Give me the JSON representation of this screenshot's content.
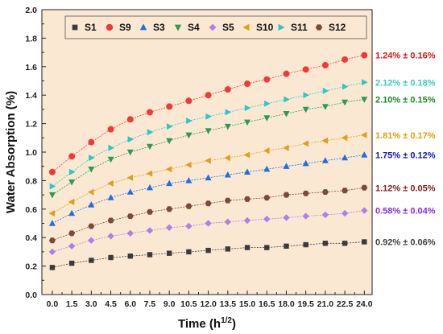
{
  "chart_data": {
    "type": "scatter",
    "xlabel": "Time (h",
    "xlabel_sup": "1/2",
    "xlabel_end": ")",
    "ylabel": "Water Absorption (%)",
    "xlim": [
      -0.8,
      24.6
    ],
    "ylim": [
      0,
      2.0
    ],
    "x_ticks": [
      0.0,
      1.5,
      3.0,
      4.5,
      6.0,
      7.5,
      9.0,
      10.5,
      12.0,
      13.5,
      15.0,
      16.5,
      18.0,
      19.5,
      21.0,
      22.5,
      24.0
    ],
    "x_tick_labels": [
      "0.0",
      "1.5",
      "3.0",
      "4.5",
      "6.0",
      "7.5",
      "9.0",
      "10.5",
      "12.0",
      "13.5",
      "15.0",
      "16.5",
      "18.0",
      "19.5",
      "21.0",
      "22.5",
      "24.0"
    ],
    "y_ticks": [
      0,
      0.2,
      0.4,
      0.6,
      0.8,
      1.0,
      1.2,
      1.4,
      1.6,
      1.8,
      2.0
    ],
    "y_tick_labels": [
      "0.0",
      "0.2",
      "0.4",
      "0.6",
      "0.8",
      "1.0",
      "1.2",
      "1.4",
      "1.6",
      "1.8",
      "2.0"
    ],
    "x": [
      0.0,
      1.5,
      3.0,
      4.5,
      6.0,
      7.5,
      9.0,
      10.5,
      12.0,
      13.5,
      15.0,
      16.5,
      18.0,
      19.5,
      21.0,
      22.5,
      24.0
    ],
    "legend_position": "top",
    "background": "#fbe8d3",
    "grid": false,
    "series": [
      {
        "name": "S1",
        "color": "#3b3b3b",
        "marker": "square",
        "values": [
          0.19,
          0.22,
          0.24,
          0.26,
          0.27,
          0.28,
          0.29,
          0.3,
          0.31,
          0.32,
          0.33,
          0.33,
          0.34,
          0.35,
          0.36,
          0.36,
          0.37
        ],
        "annotation": "0.92% ± 0.06%",
        "annotation_color": "#404040"
      },
      {
        "name": "S9",
        "color": "#f03a3a",
        "marker": "circle",
        "values": [
          0.86,
          0.97,
          1.07,
          1.16,
          1.23,
          1.28,
          1.32,
          1.36,
          1.4,
          1.44,
          1.48,
          1.51,
          1.55,
          1.58,
          1.61,
          1.65,
          1.68
        ],
        "annotation": "1.24% ± 0.16%",
        "annotation_color": "#e01515"
      },
      {
        "name": "S3",
        "color": "#1f6fe0",
        "marker": "triangle-up",
        "values": [
          0.5,
          0.57,
          0.63,
          0.68,
          0.72,
          0.75,
          0.78,
          0.8,
          0.82,
          0.84,
          0.86,
          0.88,
          0.9,
          0.92,
          0.94,
          0.96,
          0.98
        ],
        "annotation": "1.75% ± 0.12%",
        "annotation_color": "#1010d8"
      },
      {
        "name": "S4",
        "color": "#2e9a55",
        "marker": "triangle-down",
        "values": [
          0.7,
          0.79,
          0.88,
          0.95,
          1.0,
          1.04,
          1.08,
          1.12,
          1.15,
          1.18,
          1.21,
          1.24,
          1.27,
          1.3,
          1.32,
          1.35,
          1.37
        ],
        "annotation": "2.10% ± 0.15%",
        "annotation_color": "#1a8a2a"
      },
      {
        "name": "S5",
        "color": "#b07ee8",
        "marker": "diamond",
        "values": [
          0.3,
          0.34,
          0.38,
          0.41,
          0.43,
          0.45,
          0.47,
          0.48,
          0.5,
          0.51,
          0.52,
          0.53,
          0.54,
          0.55,
          0.56,
          0.57,
          0.59
        ],
        "annotation": "0.58% ± 0.04%",
        "annotation_color": "#8a2be2"
      },
      {
        "name": "S10",
        "color": "#d9a21a",
        "marker": "triangle-left",
        "values": [
          0.57,
          0.65,
          0.72,
          0.78,
          0.82,
          0.85,
          0.88,
          0.91,
          0.94,
          0.96,
          0.98,
          1.01,
          1.03,
          1.06,
          1.08,
          1.1,
          1.12
        ],
        "annotation": "1.81% ± 0.17%",
        "annotation_color": "#e0a000"
      },
      {
        "name": "S11",
        "color": "#2cc7c7",
        "marker": "triangle-right",
        "values": [
          0.76,
          0.86,
          0.96,
          1.03,
          1.09,
          1.14,
          1.18,
          1.22,
          1.25,
          1.28,
          1.31,
          1.34,
          1.37,
          1.4,
          1.43,
          1.46,
          1.49
        ],
        "annotation": "2.12% ± 0.18%",
        "annotation_color": "#3cc9c0"
      },
      {
        "name": "S12",
        "color": "#7a4a3a",
        "marker": "hexagon",
        "values": [
          0.38,
          0.43,
          0.48,
          0.52,
          0.55,
          0.58,
          0.6,
          0.62,
          0.64,
          0.66,
          0.67,
          0.68,
          0.7,
          0.71,
          0.72,
          0.73,
          0.75
        ],
        "annotation": "1.12% ± 0.05%",
        "annotation_color": "#8b1a1a"
      }
    ]
  }
}
